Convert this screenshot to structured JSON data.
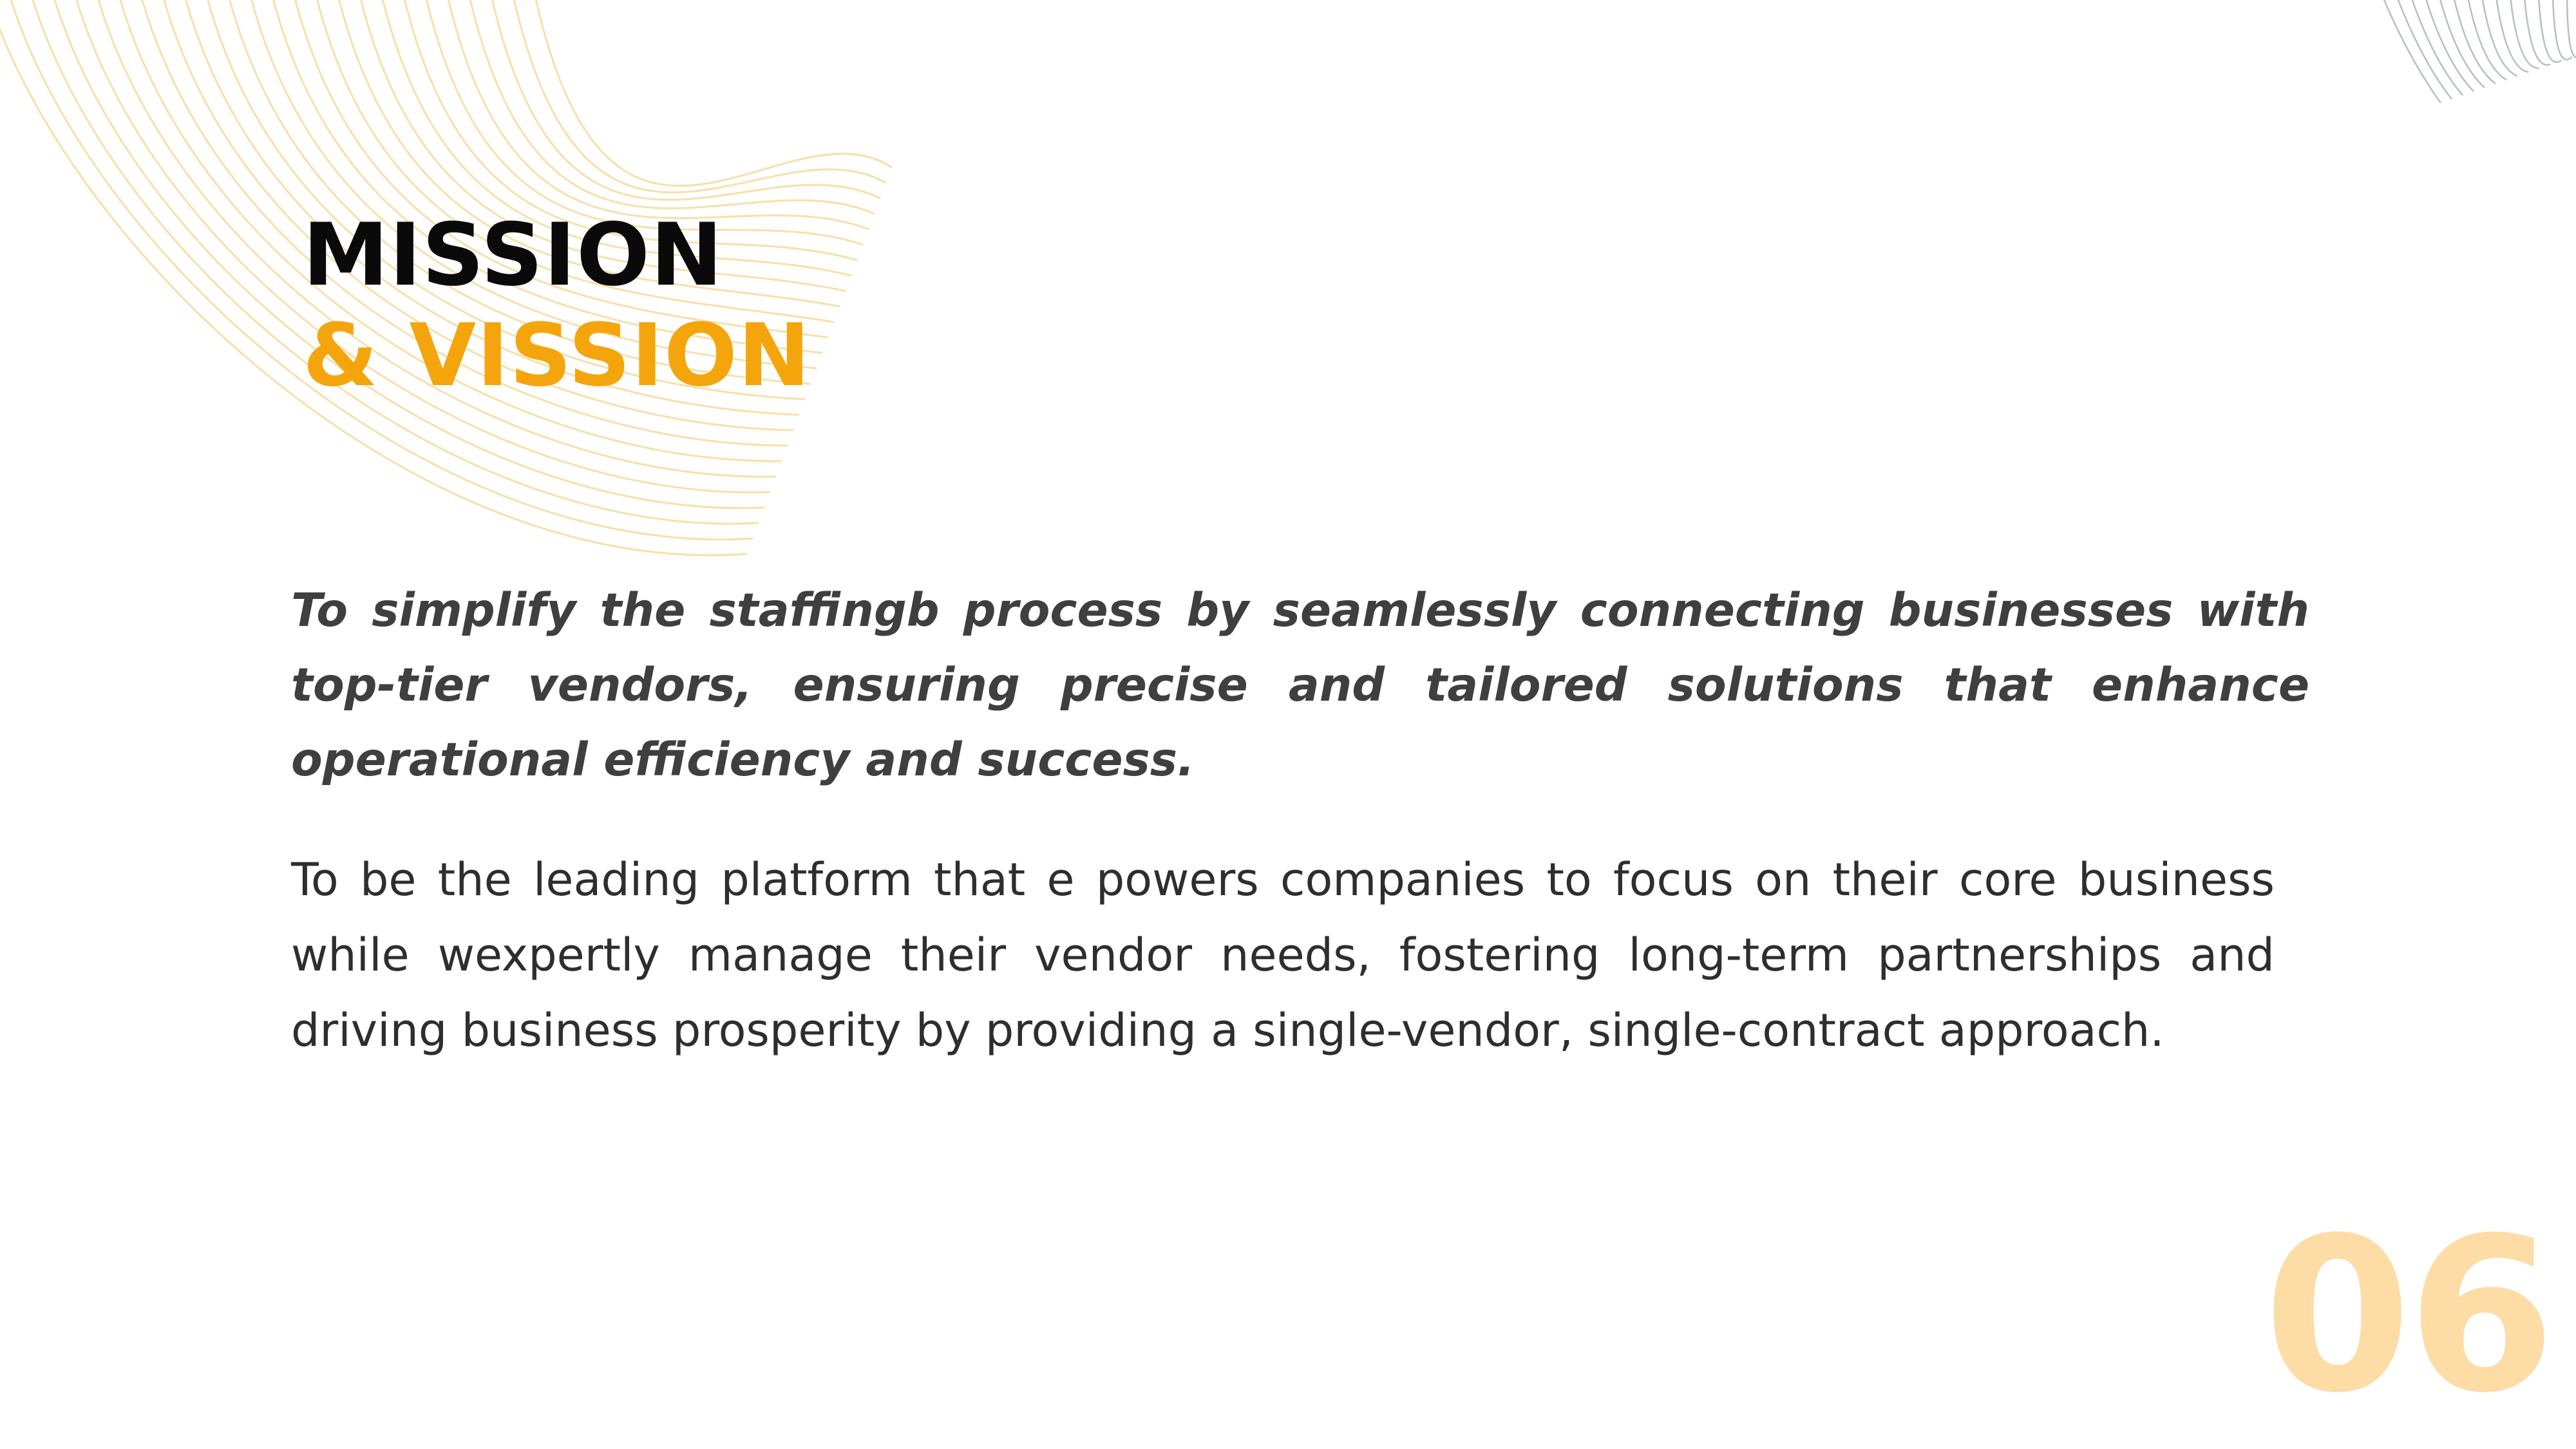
{
  "slide": {
    "title_line1": "MISSION",
    "title_line2": "& VISSION",
    "mission_text": "To simplify the staffingb process by seamlessly connecting businesses with top-tier vendors, ensuring precise and tailored solutions that enhance operational efficiency and success.",
    "vision_text": "To be the leading platform that e powers companies to focus on their core business while wexpertly manage their vendor needs, fostering long-term partnerships and driving business prosperity by providing a single-vendor,  single-contract approach.",
    "page_number": "06"
  },
  "colors": {
    "accent": "#f5a50c",
    "title": "#0a0a0a",
    "mission_text": "#3f3f3f",
    "vision_text": "#2e2e2e",
    "page_number": "#fddca6",
    "deco_lines_left": "#f6d48e",
    "deco_lines_right": "#9aa3a8"
  }
}
